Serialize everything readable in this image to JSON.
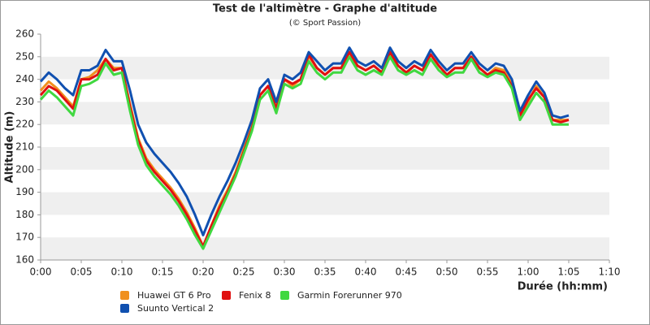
{
  "chart_data": {
    "type": "line",
    "title": "Test de l'altimètre - Graphe d'altitude",
    "subtitle": "(© Sport Passion)",
    "x_label": "Durée (hh:mm)",
    "y_label": "Altitude (m)",
    "xlim": [
      0,
      70
    ],
    "ylim": [
      160,
      260
    ],
    "xticks": [
      {
        "value": 0,
        "label": "0:00"
      },
      {
        "value": 5,
        "label": "0:05"
      },
      {
        "value": 10,
        "label": "0:10"
      },
      {
        "value": 15,
        "label": "0:15"
      },
      {
        "value": 20,
        "label": "0:20"
      },
      {
        "value": 25,
        "label": "0:25"
      },
      {
        "value": 30,
        "label": "0:30"
      },
      {
        "value": 35,
        "label": "0:35"
      },
      {
        "value": 40,
        "label": "0:40"
      },
      {
        "value": 45,
        "label": "0:45"
      },
      {
        "value": 50,
        "label": "0:50"
      },
      {
        "value": 55,
        "label": "0:55"
      },
      {
        "value": 60,
        "label": "1:00"
      },
      {
        "value": 65,
        "label": "1:05"
      },
      {
        "value": 70,
        "label": "1:10"
      }
    ],
    "yticks": [
      160,
      170,
      180,
      190,
      200,
      210,
      220,
      230,
      240,
      250,
      260
    ],
    "grid": "bands",
    "x": [
      0,
      1,
      2,
      3,
      4,
      5,
      6,
      7,
      8,
      9,
      10,
      11,
      12,
      13,
      14,
      15,
      16,
      17,
      18,
      19,
      20,
      21,
      22,
      23,
      24,
      25,
      26,
      27,
      28,
      29,
      30,
      31,
      32,
      33,
      34,
      35,
      36,
      37,
      38,
      39,
      40,
      41,
      42,
      43,
      44,
      45,
      46,
      47,
      48,
      49,
      50,
      51,
      52,
      53,
      54,
      55,
      56,
      57,
      58,
      59,
      60,
      61,
      62,
      63,
      64,
      65
    ],
    "series": [
      {
        "name": "Huawei GT 6 Pro",
        "color": "#f0901e",
        "values": [
          235,
          239,
          236,
          232,
          228,
          240,
          241,
          244,
          249,
          245,
          245,
          229,
          214,
          205,
          200,
          196,
          192,
          187,
          181,
          174,
          166,
          175,
          184,
          191,
          199,
          209,
          219,
          233,
          237,
          228,
          240,
          237,
          240,
          250,
          245,
          242,
          245,
          245,
          252,
          246,
          244,
          246,
          243,
          252,
          246,
          243,
          246,
          244,
          251,
          246,
          242,
          245,
          245,
          250,
          245,
          242,
          245,
          244,
          238,
          223,
          230,
          237,
          232,
          222,
          222,
          222
        ]
      },
      {
        "name": "Fenix 8",
        "color": "#e01010",
        "values": [
          233,
          237,
          235,
          231,
          227,
          240,
          240,
          242,
          249,
          244,
          245,
          228,
          213,
          204,
          199,
          195,
          191,
          186,
          180,
          173,
          166,
          175,
          183,
          190,
          198,
          208,
          218,
          233,
          237,
          227,
          240,
          238,
          240,
          251,
          245,
          242,
          245,
          245,
          252,
          246,
          244,
          246,
          243,
          252,
          246,
          243,
          246,
          244,
          251,
          246,
          242,
          245,
          245,
          250,
          245,
          242,
          244,
          243,
          237,
          224,
          231,
          236,
          232,
          222,
          221,
          222
        ]
      },
      {
        "name": "Garmin Forerunner 970",
        "color": "#40d840",
        "values": [
          231,
          235,
          232,
          228,
          224,
          237,
          238,
          240,
          247,
          242,
          243,
          226,
          211,
          202,
          197,
          193,
          189,
          184,
          178,
          171,
          165,
          173,
          181,
          189,
          197,
          207,
          217,
          231,
          235,
          225,
          238,
          236,
          238,
          248,
          243,
          240,
          243,
          243,
          250,
          244,
          242,
          244,
          242,
          250,
          244,
          242,
          244,
          242,
          249,
          244,
          241,
          243,
          243,
          249,
          243,
          241,
          243,
          242,
          236,
          222,
          228,
          234,
          230,
          220,
          220,
          220
        ]
      },
      {
        "name": "Suunto Vertical 2",
        "color": "#1050b0",
        "values": [
          239,
          243,
          240,
          236,
          233,
          244,
          244,
          246,
          253,
          248,
          248,
          235,
          220,
          212,
          207,
          203,
          199,
          194,
          188,
          180,
          171,
          180,
          188,
          195,
          203,
          212,
          222,
          236,
          240,
          230,
          242,
          240,
          243,
          252,
          248,
          244,
          247,
          247,
          254,
          248,
          246,
          248,
          245,
          254,
          248,
          245,
          248,
          246,
          253,
          248,
          244,
          247,
          247,
          252,
          247,
          244,
          247,
          246,
          240,
          226,
          233,
          239,
          234,
          224,
          223,
          224
        ]
      }
    ]
  }
}
